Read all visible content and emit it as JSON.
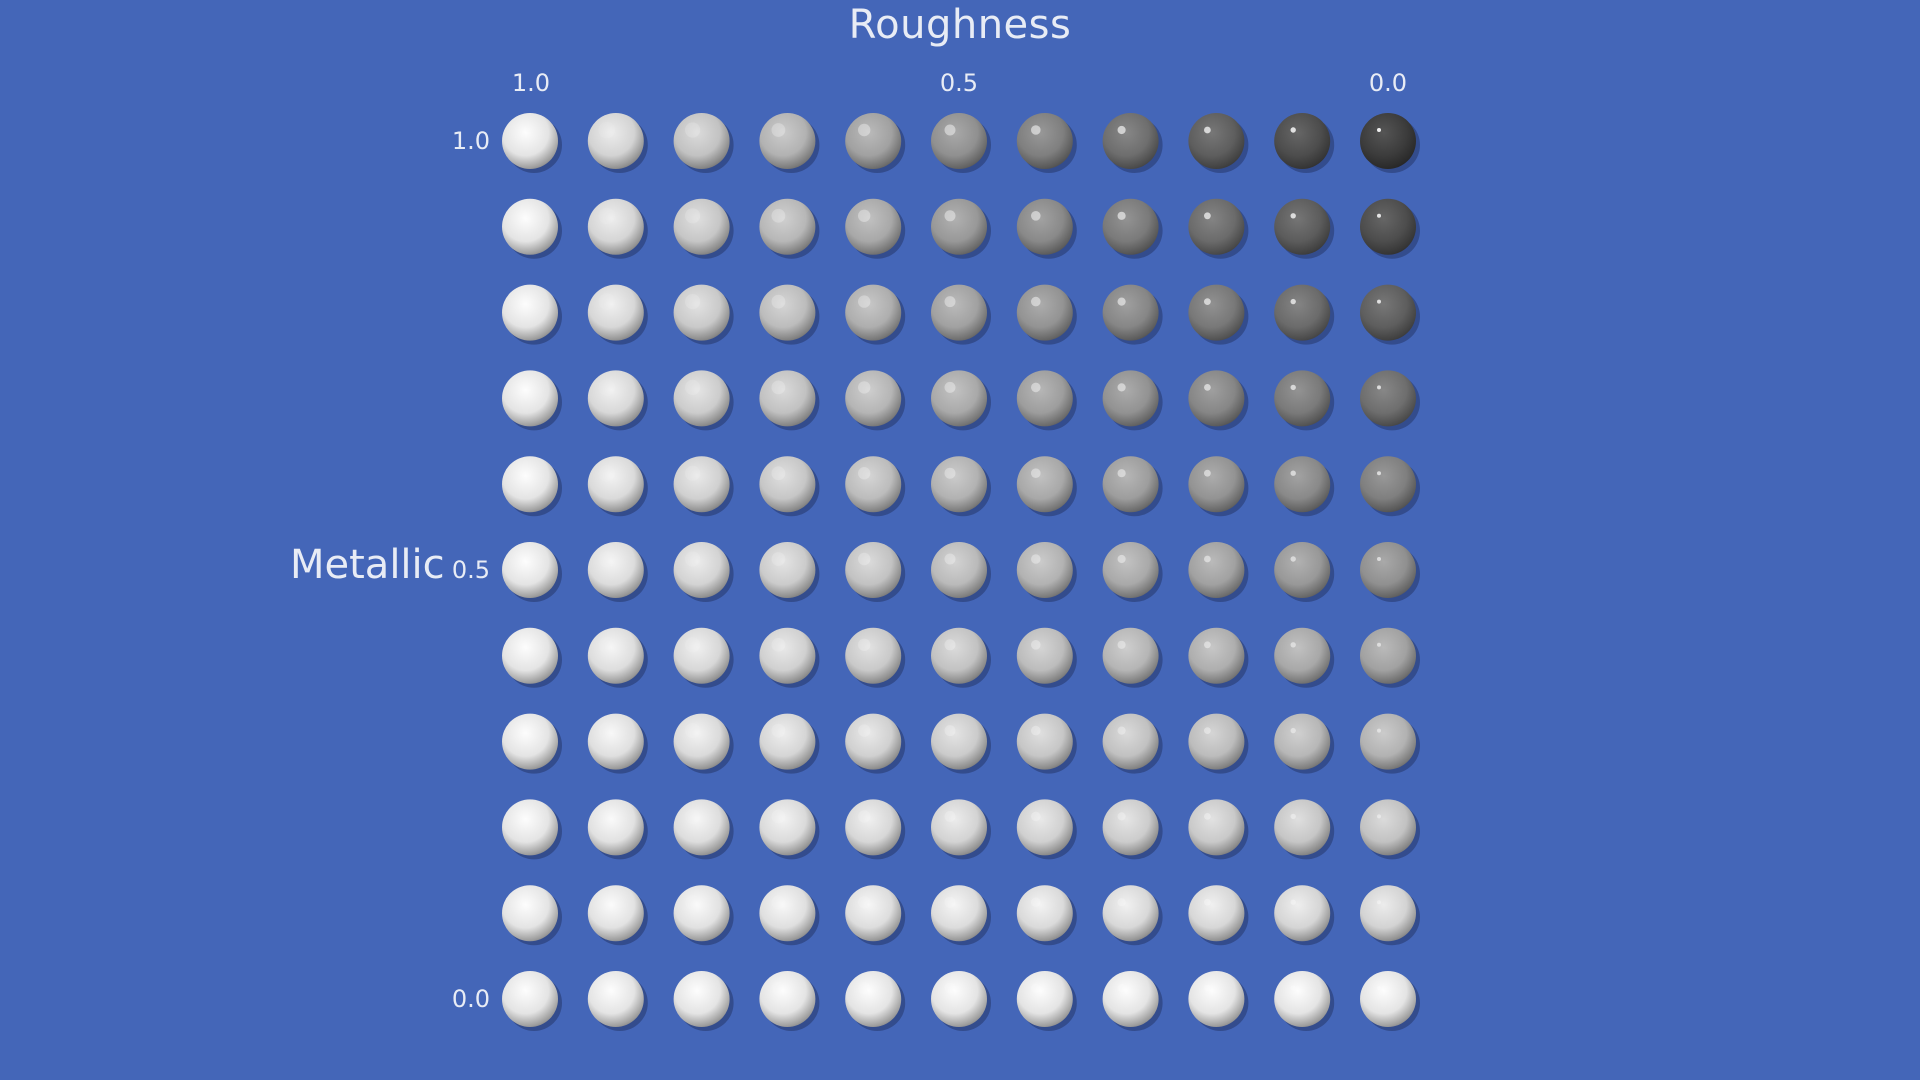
{
  "x_axis": {
    "title": "Roughness",
    "tick_labels": [
      "1.0",
      "0.5",
      "0.0"
    ]
  },
  "y_axis": {
    "title": "Metallic",
    "tick_labels": [
      "1.0",
      "0.5",
      "0.0"
    ]
  },
  "grid": {
    "rows": 11,
    "columns": 11,
    "roughness_values": [
      1.0,
      0.9,
      0.8,
      0.7,
      0.6,
      0.5,
      0.4,
      0.3,
      0.2,
      0.1,
      0.0
    ],
    "metallic_values": [
      1.0,
      0.9,
      0.8,
      0.7,
      0.6,
      0.5,
      0.4,
      0.3,
      0.2,
      0.1,
      0.0
    ]
  },
  "colors": {
    "background": "#4466b8",
    "label_text": "#e8ecf5",
    "dielectric_base": "#e6e6e6",
    "metal_dark": "#3c3c3c"
  }
}
